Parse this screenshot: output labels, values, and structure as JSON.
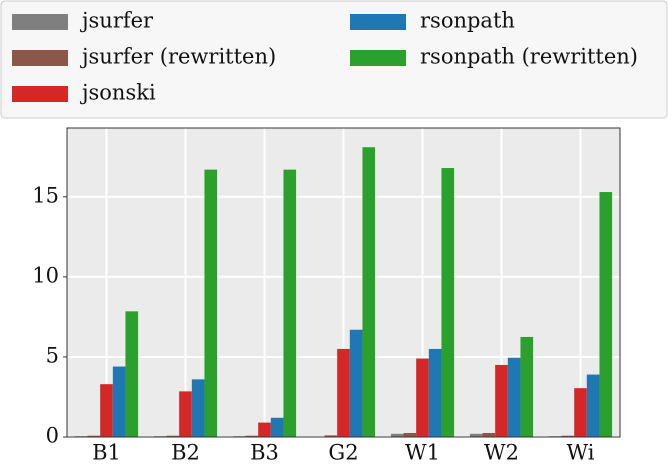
{
  "chart_data": {
    "type": "bar",
    "categories": [
      "B1",
      "B2",
      "B3",
      "G2",
      "W1",
      "W2",
      "Wi"
    ],
    "series": [
      {
        "name": "jsurfer",
        "color": "#7f7f7f",
        "values": [
          0.05,
          0.05,
          0.05,
          0.03,
          0.2,
          0.2,
          0.05
        ]
      },
      {
        "name": "jsurfer (rewritten)",
        "color": "#8c564b",
        "values": [
          0.08,
          0.08,
          0.08,
          0.1,
          0.25,
          0.25,
          0.08
        ]
      },
      {
        "name": "jsonski",
        "color": "#d62728",
        "values": [
          3.3,
          2.85,
          0.9,
          5.5,
          4.9,
          4.5,
          3.05
        ]
      },
      {
        "name": "rsonpath",
        "color": "#1f77b4",
        "values": [
          4.4,
          3.6,
          1.2,
          6.7,
          5.5,
          4.95,
          3.9
        ]
      },
      {
        "name": "rsonpath (rewritten)",
        "color": "#2ca02c",
        "values": [
          7.85,
          16.7,
          16.7,
          18.1,
          16.8,
          6.25,
          15.3
        ]
      }
    ],
    "ylim": [
      0,
      19.3
    ],
    "yticks": [
      0,
      5,
      10,
      15
    ],
    "grid": true
  }
}
